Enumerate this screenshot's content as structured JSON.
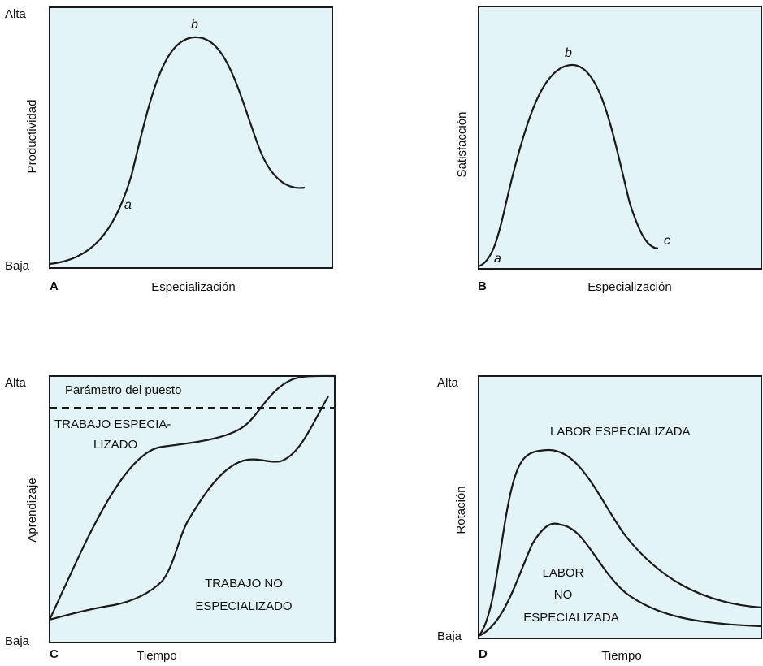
{
  "colors": {
    "panel_fill": "#e3f4f8",
    "stroke": "#1a1a1a"
  },
  "chart_data": [
    {
      "panel": "A",
      "type": "line",
      "xlabel": "Especialización",
      "ylabel": "Productividad",
      "y_ticks": [
        "Alta",
        "Baja"
      ],
      "curve_labels": [
        "a",
        "b"
      ]
    },
    {
      "panel": "B",
      "type": "line",
      "xlabel": "Especialización",
      "ylabel": "Satisfacción",
      "curve_labels": [
        "a",
        "b",
        "c"
      ]
    },
    {
      "panel": "C",
      "type": "line",
      "xlabel": "Tiempo",
      "ylabel": "Aprendizaje",
      "y_ticks": [
        "Alta",
        "Baja"
      ],
      "reference_line": "Parámetro del puesto",
      "series": [
        {
          "name_lines": [
            "TRABAJO ESPECIA-",
            "LIZADO"
          ]
        },
        {
          "name_lines": [
            "TRABAJO NO",
            "ESPECIALIZADO"
          ]
        }
      ]
    },
    {
      "panel": "D",
      "type": "line",
      "xlabel": "Tiempo",
      "ylabel": "Rotación",
      "y_ticks": [
        "Alta",
        "Baja"
      ],
      "series": [
        {
          "name_lines": [
            "LABOR ESPECIALIZADA"
          ]
        },
        {
          "name_lines": [
            "LABOR",
            "NO",
            "ESPECIALIZADA"
          ]
        }
      ]
    }
  ]
}
